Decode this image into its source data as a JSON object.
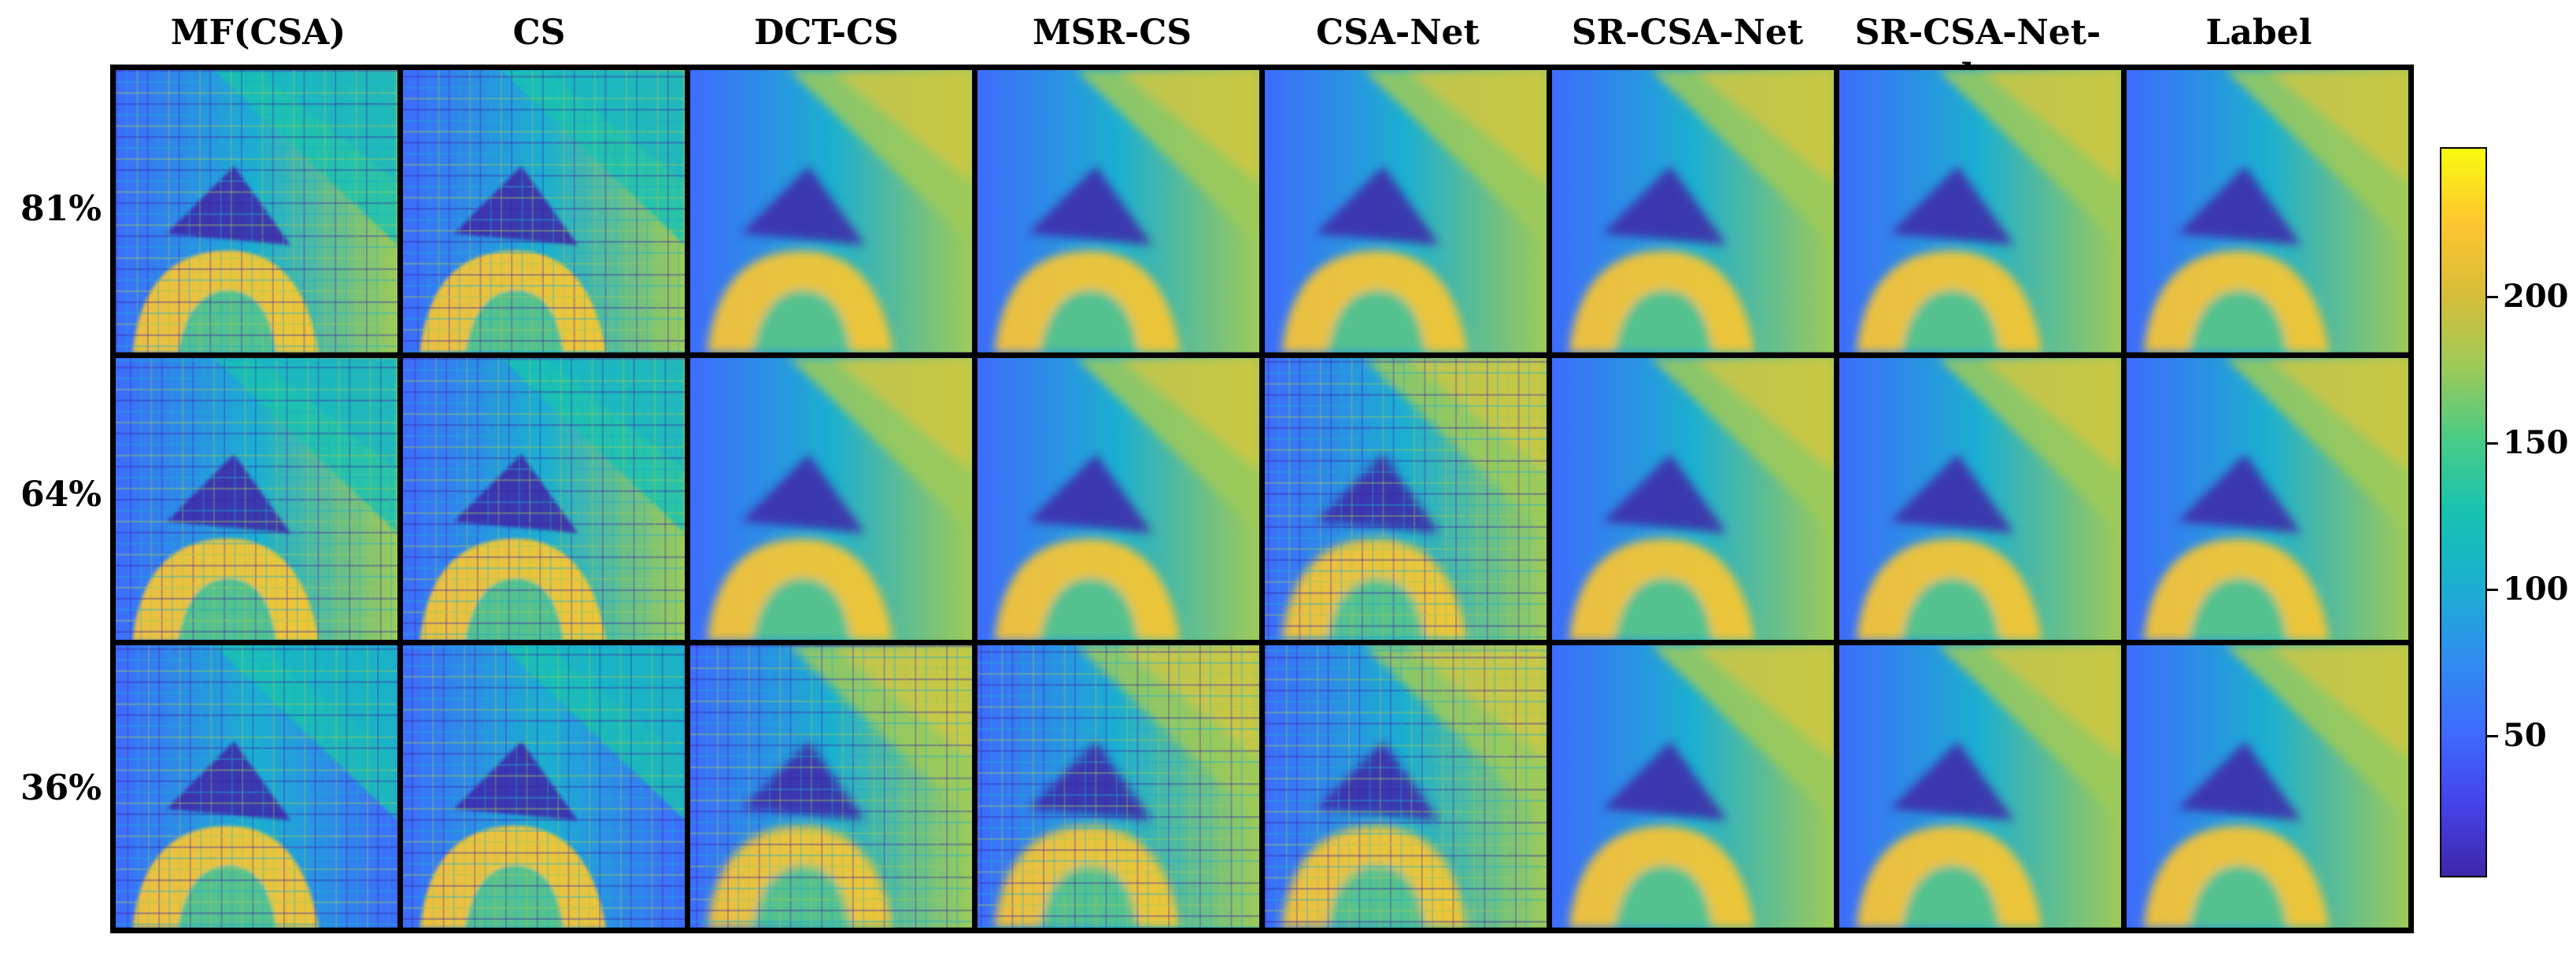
{
  "columns": [
    "MF(CSA)",
    "CS",
    "DCT-CS",
    "MSR-CS",
    "CSA-Net",
    "SR-CSA-Net",
    "SR-CSA-Net-plus",
    "Label"
  ],
  "rows": [
    "81%",
    "64%",
    "36%"
  ],
  "colorbar": {
    "ticks": [
      "50",
      "100",
      "150",
      "200"
    ],
    "tick_values": [
      50,
      100,
      150,
      200
    ],
    "range": [
      0,
      250
    ]
  },
  "colors": {
    "low": "#3e26a8",
    "blue": "#3d6cfd",
    "cyan": "#1bafd0",
    "teal": "#16c2b0",
    "green": "#9dca58",
    "gold": "#fec62f",
    "high": "#f9fb0e"
  }
}
